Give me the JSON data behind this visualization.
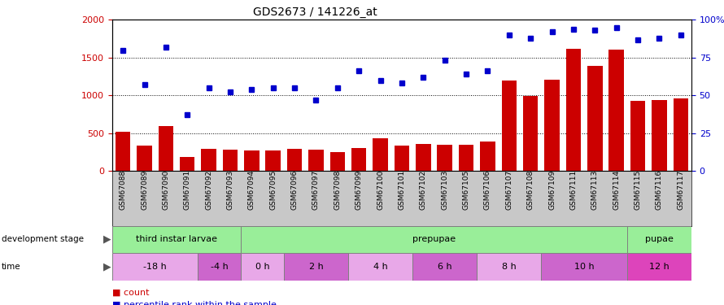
{
  "title": "GDS2673 / 141226_at",
  "samples": [
    "GSM67088",
    "GSM67089",
    "GSM67090",
    "GSM67091",
    "GSM67092",
    "GSM67093",
    "GSM67094",
    "GSM67095",
    "GSM67096",
    "GSM67097",
    "GSM67098",
    "GSM67099",
    "GSM67100",
    "GSM67101",
    "GSM67102",
    "GSM67103",
    "GSM67105",
    "GSM67106",
    "GSM67107",
    "GSM67108",
    "GSM67109",
    "GSM67111",
    "GSM67113",
    "GSM67114",
    "GSM67115",
    "GSM67116",
    "GSM67117"
  ],
  "counts": [
    520,
    330,
    590,
    180,
    295,
    280,
    270,
    270,
    290,
    275,
    245,
    305,
    430,
    330,
    360,
    345,
    340,
    390,
    1200,
    990,
    1210,
    1620,
    1390,
    1610,
    930,
    940,
    960
  ],
  "percentile": [
    80,
    57,
    82,
    37,
    55,
    52,
    54,
    55,
    55,
    47,
    55,
    66,
    60,
    58,
    62,
    73,
    64,
    66,
    90,
    88,
    92,
    94,
    93,
    95,
    87,
    88,
    90
  ],
  "ylim_left": [
    0,
    2000
  ],
  "ylim_right": [
    0,
    100
  ],
  "yticks_left": [
    0,
    500,
    1000,
    1500,
    2000
  ],
  "yticks_right": [
    0,
    25,
    50,
    75,
    100
  ],
  "bar_color": "#cc0000",
  "dot_color": "#0000cc",
  "plot_bg": "#ffffff",
  "xtick_bg": "#c8c8c8",
  "grid_values": [
    500,
    1000,
    1500
  ],
  "left_ylabel_color": "#cc0000",
  "right_ylabel_color": "#0000cc",
  "bar_width": 0.7,
  "stage_configs": [
    {
      "label": "third instar larvae",
      "color": "#99ee99",
      "start": 0,
      "end": 6
    },
    {
      "label": "prepupae",
      "color": "#99ee99",
      "start": 6,
      "end": 24
    },
    {
      "label": "pupae",
      "color": "#99ee99",
      "start": 24,
      "end": 27
    }
  ],
  "time_configs": [
    {
      "label": "-18 h",
      "color": "#e8a8e8",
      "start": 0,
      "end": 4
    },
    {
      "label": "-4 h",
      "color": "#cc66cc",
      "start": 4,
      "end": 6
    },
    {
      "label": "0 h",
      "color": "#e8a8e8",
      "start": 6,
      "end": 8
    },
    {
      "label": "2 h",
      "color": "#cc66cc",
      "start": 8,
      "end": 11
    },
    {
      "label": "4 h",
      "color": "#e8a8e8",
      "start": 11,
      "end": 14
    },
    {
      "label": "6 h",
      "color": "#cc66cc",
      "start": 14,
      "end": 17
    },
    {
      "label": "8 h",
      "color": "#e8a8e8",
      "start": 17,
      "end": 20
    },
    {
      "label": "10 h",
      "color": "#cc66cc",
      "start": 20,
      "end": 24
    },
    {
      "label": "12 h",
      "color": "#dd44bb",
      "start": 24,
      "end": 27
    }
  ]
}
